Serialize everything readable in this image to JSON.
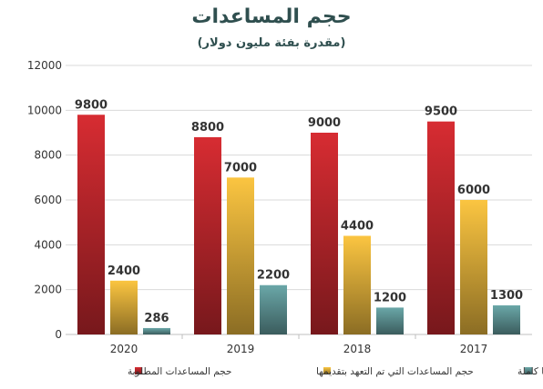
{
  "chart_data": {
    "type": "bar",
    "title": "حجم المساعدات",
    "subtitle": "(مقدرة بفئة مليون دولار)",
    "categories": [
      "2020",
      "2019",
      "2018",
      "2017"
    ],
    "series": [
      {
        "name": "حجم المساعدات المطلوبة",
        "values": [
          9800,
          8800,
          9000,
          9500
        ],
        "color": "#c0272d"
      },
      {
        "name": "حجم المساعدات التي تم التعهد بتقديمها",
        "values": [
          2400,
          7000,
          4400,
          6000
        ],
        "color": "#e0b03a"
      },
      {
        "name": "حجم المساعدات المخصصة لسوريا كاملة",
        "values": [
          286,
          2200,
          1200,
          1300
        ],
        "color": "#5f9596"
      }
    ],
    "ylim": [
      0,
      12000
    ],
    "yticks": [
      0,
      2000,
      4000,
      6000,
      8000,
      10000,
      12000
    ],
    "grid": true,
    "legend_position": "bottom"
  }
}
